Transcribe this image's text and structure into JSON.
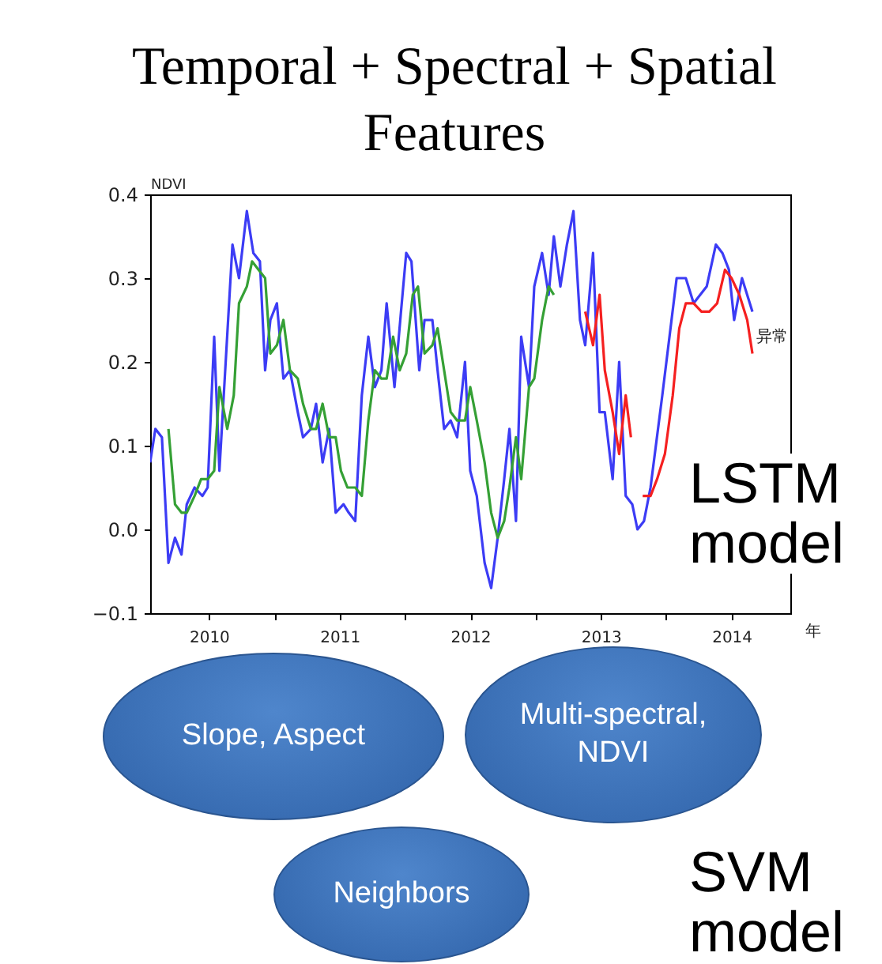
{
  "chart_data": [
    {
      "type": "line",
      "title": "Temporal + Spectral + Spatial Features",
      "xlabel": "年",
      "ylabel": "NDVI",
      "xlim": [
        2010.05,
        2014.95
      ],
      "ylim": [
        -0.1,
        0.4
      ],
      "xticks": [
        {
          "value": 2010.5,
          "label": "2010"
        },
        {
          "value": 2011,
          "label": null
        },
        {
          "value": 2011.5,
          "label": "2011"
        },
        {
          "value": 2012,
          "label": null
        },
        {
          "value": 2012.5,
          "label": "2012"
        },
        {
          "value": 2013,
          "label": null
        },
        {
          "value": 2013.5,
          "label": "2013"
        },
        {
          "value": 2014,
          "label": null
        },
        {
          "value": 2014.5,
          "label": "2014"
        }
      ],
      "yticks": [
        {
          "value": -0.1,
          "label": "−0.1"
        },
        {
          "value": 0,
          "label": "0.0"
        },
        0.1,
        0.2,
        0.3,
        0.4
      ],
      "grid": false,
      "annotations": [
        {
          "text": "异常",
          "x": 2014.69,
          "y": 0.23
        }
      ],
      "series": [
        {
          "color": "#3c3cf5",
          "x": [
            2010.05,
            2010.09,
            2010.14,
            2010.19,
            2010.24,
            2010.29,
            2010.33,
            2010.39,
            2010.45,
            2010.49,
            2010.54,
            2010.58,
            2010.68,
            2010.73,
            2010.79,
            2010.84,
            2010.89,
            2010.93,
            2010.97,
            2011.02,
            2011.07,
            2011.12,
            2011.18,
            2011.22,
            2011.28,
            2011.32,
            2011.37,
            2011.42,
            2011.47,
            2011.53,
            2011.57,
            2011.62,
            2011.67,
            2011.72,
            2011.77,
            2011.82,
            2011.86,
            2011.92,
            2011.97,
            2012.01,
            2012.05,
            2012.11,
            2012.15,
            2012.21,
            2012.25,
            2012.3,
            2012.35,
            2012.4,
            2012.46,
            2012.5,
            2012.55,
            2012.61,
            2012.66,
            2012.71,
            2012.76,
            2012.8,
            2012.85,
            2012.89,
            2012.95,
            2012.99,
            2013.05,
            2013.1,
            2013.14,
            2013.19,
            2013.24,
            2013.29,
            2013.34,
            2013.38,
            2013.44,
            2013.49,
            2013.53,
            2013.59,
            2013.64,
            2013.69,
            2013.74,
            2013.78,
            2013.83,
            2013.88,
            2013.97,
            2014.08,
            2014.15,
            2014.21,
            2014.31,
            2014.38,
            2014.43,
            2014.48,
            2014.52,
            2014.58,
            2014.62,
            2014.66
          ],
          "values": [
            0.08,
            0.12,
            0.11,
            -0.04,
            -0.01,
            -0.03,
            0.03,
            0.05,
            0.04,
            0.05,
            0.23,
            0.07,
            0.34,
            0.3,
            0.38,
            0.33,
            0.32,
            0.19,
            0.25,
            0.27,
            0.18,
            0.19,
            0.14,
            0.11,
            0.12,
            0.15,
            0.08,
            0.12,
            0.02,
            0.03,
            0.02,
            0.01,
            0.16,
            0.23,
            0.17,
            0.19,
            0.27,
            0.17,
            0.26,
            0.33,
            0.32,
            0.19,
            0.25,
            0.25,
            0.19,
            0.12,
            0.13,
            0.11,
            0.2,
            0.07,
            0.04,
            -0.04,
            -0.07,
            -0.01,
            0.06,
            0.12,
            0.01,
            0.23,
            0.17,
            0.29,
            0.33,
            0.28,
            0.35,
            0.29,
            0.34,
            0.38,
            0.25,
            0.22,
            0.33,
            0.14,
            0.14,
            0.06,
            0.2,
            0.04,
            0.03,
            0,
            0.01,
            0.05,
            0.16,
            0.3,
            0.3,
            0.27,
            0.29,
            0.34,
            0.33,
            0.31,
            0.25,
            0.3,
            0.28,
            0.26
          ]
        },
        {
          "color": "#35a035",
          "x": [
            2010.19,
            2010.24,
            2010.29,
            2010.33,
            2010.39,
            2010.44,
            2010.49,
            2010.54,
            2010.58,
            2010.64,
            2010.69,
            2010.73,
            2010.79,
            2010.83,
            2010.88,
            2010.93,
            2010.97,
            2011.02,
            2011.07,
            2011.12,
            2011.18,
            2011.22,
            2011.28,
            2011.32,
            2011.37,
            2011.42,
            2011.47,
            2011.51,
            2011.56,
            2011.62,
            2011.67,
            2011.72,
            2011.77,
            2011.82,
            2011.86,
            2011.91,
            2011.96,
            2012.01,
            2012.06,
            2012.1,
            2012.15,
            2012.21,
            2012.25,
            2012.3,
            2012.35,
            2012.4,
            2012.46,
            2012.5,
            2012.55,
            2012.61,
            2012.66,
            2012.71,
            2012.76,
            2012.8,
            2012.85,
            2012.89,
            2012.95,
            2012.99,
            2013.05,
            2013.1,
            2013.14
          ],
          "values": [
            0.12,
            0.03,
            0.02,
            0.02,
            0.04,
            0.06,
            0.06,
            0.07,
            0.17,
            0.12,
            0.16,
            0.27,
            0.29,
            0.32,
            0.31,
            0.3,
            0.21,
            0.22,
            0.25,
            0.19,
            0.18,
            0.15,
            0.12,
            0.12,
            0.15,
            0.11,
            0.11,
            0.07,
            0.05,
            0.05,
            0.04,
            0.13,
            0.19,
            0.18,
            0.18,
            0.23,
            0.19,
            0.21,
            0.28,
            0.29,
            0.21,
            0.22,
            0.24,
            0.19,
            0.14,
            0.13,
            0.13,
            0.17,
            0.13,
            0.08,
            0.02,
            -0.01,
            0.01,
            0.05,
            0.11,
            0.06,
            0.17,
            0.18,
            0.25,
            0.29,
            0.28
          ]
        },
        {
          "color": "#f52020",
          "x": [
            2013.38,
            2013.44,
            2013.49,
            2013.53,
            2013.59,
            2013.64,
            2013.69,
            2013.73,
            2013.77,
            2013.82,
            2013.88,
            2013.93,
            2013.99,
            2014.05,
            2014.1,
            2014.15,
            2014.21,
            2014.27,
            2014.33,
            2014.39,
            2014.45,
            2014.5,
            2014.56,
            2014.62,
            2014.66
          ],
          "values": [
            0.26,
            0.22,
            0.28,
            0.19,
            0.14,
            0.09,
            0.16,
            0.11,
            null,
            0.04,
            0.04,
            0.06,
            0.09,
            0.16,
            0.24,
            0.27,
            0.27,
            0.26,
            0.26,
            0.27,
            0.31,
            0.3,
            0.28,
            0.25,
            0.21
          ]
        }
      ]
    },
    {
      "type": "other",
      "annotations": [
        "LSTM model",
        "Slope, Aspect",
        "Multi-spectral, NDVI",
        "Neighbors",
        "SVM model"
      ]
    }
  ]
}
